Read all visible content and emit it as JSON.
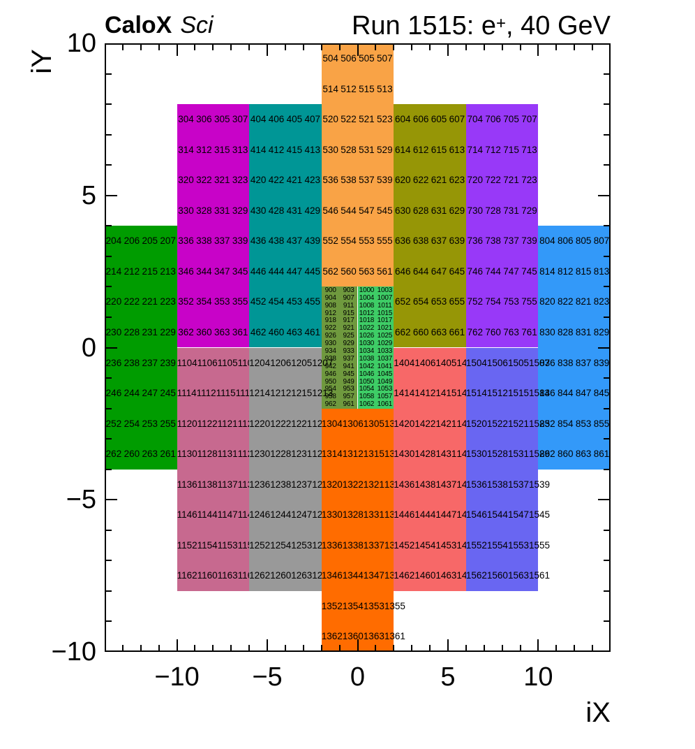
{
  "header": {
    "left_bold": "CaloX",
    "left_italic": "Sci",
    "right_prefix": "Run 1515: e",
    "right_sup": "+",
    "right_suffix": ", 40 GeV"
  },
  "axes": {
    "x": {
      "title": "iX",
      "range": [
        -14,
        14
      ],
      "minor_step": 1,
      "major_step": 5,
      "labels": [
        {
          "v": -10,
          "t": "−10"
        },
        {
          "v": -5,
          "t": "−5"
        },
        {
          "v": 0,
          "t": "0"
        },
        {
          "v": 5,
          "t": "5"
        },
        {
          "v": 10,
          "t": "10"
        }
      ]
    },
    "y": {
      "title": "iY",
      "range": [
        -10,
        10
      ],
      "minor_step": 1,
      "major_step": 5,
      "labels": [
        {
          "v": 10,
          "t": "10"
        },
        {
          "v": 5,
          "t": "5"
        },
        {
          "v": 0,
          "t": "0"
        },
        {
          "v": -5,
          "t": "−5"
        },
        {
          "v": -10,
          "t": "−10"
        }
      ]
    }
  },
  "chart_data": {
    "type": "heatmap",
    "title": "CaloX Sci — Run 1515: e+, 40 GeV",
    "xlabel": "iX",
    "ylabel": "iY",
    "xlim": [
      -14,
      14
    ],
    "ylim": [
      -10,
      10
    ],
    "grid": false,
    "legend": "none",
    "description": "Calorimeter channel-number map. Each colored block is a detector module; cell text is the channel ID at that (iX,iY) position. Rows listed top to bottom; x/y ranges in axis units.",
    "modules": [
      {
        "id": "200",
        "color": "#009C00",
        "x": [
          -14,
          -10
        ],
        "y": [
          -4,
          4
        ],
        "rows": [
          [
            "204",
            "206",
            "205",
            "207"
          ],
          [
            "214",
            "212",
            "215",
            "213"
          ],
          [
            "220",
            "222",
            "221",
            "223"
          ],
          [
            "230",
            "228",
            "231",
            "229"
          ],
          [
            "236",
            "238",
            "237",
            "239"
          ],
          [
            "246",
            "244",
            "247",
            "245"
          ],
          [
            "252",
            "254",
            "253",
            "255"
          ],
          [
            "262",
            "260",
            "263",
            "261"
          ]
        ]
      },
      {
        "id": "300",
        "color": "#C803C8",
        "x": [
          -10,
          -6
        ],
        "y": [
          0,
          8
        ],
        "rows": [
          [
            "304",
            "306",
            "305",
            "307"
          ],
          [
            "314",
            "312",
            "315",
            "313"
          ],
          [
            "320",
            "322",
            "321",
            "323"
          ],
          [
            "330",
            "328",
            "331",
            "329"
          ],
          [
            "336",
            "338",
            "337",
            "339"
          ],
          [
            "346",
            "344",
            "347",
            "345"
          ],
          [
            "352",
            "354",
            "353",
            "355"
          ],
          [
            "362",
            "360",
            "363",
            "361"
          ]
        ]
      },
      {
        "id": "400",
        "color": "#009696",
        "x": [
          -6,
          -2
        ],
        "y": [
          0,
          8
        ],
        "rows": [
          [
            "404",
            "406",
            "405",
            "407"
          ],
          [
            "414",
            "412",
            "415",
            "413"
          ],
          [
            "420",
            "422",
            "421",
            "423"
          ],
          [
            "430",
            "428",
            "431",
            "429"
          ],
          [
            "436",
            "438",
            "437",
            "439"
          ],
          [
            "446",
            "444",
            "447",
            "445"
          ],
          [
            "452",
            "454",
            "453",
            "455"
          ],
          [
            "462",
            "460",
            "463",
            "461"
          ]
        ]
      },
      {
        "id": "500",
        "color": "#F9A346",
        "x": [
          -2,
          2
        ],
        "y": [
          2,
          10
        ],
        "rows": [
          [
            "504",
            "506",
            "505",
            "507"
          ],
          [
            "514",
            "512",
            "515",
            "513"
          ],
          [
            "520",
            "522",
            "521",
            "523"
          ],
          [
            "530",
            "528",
            "531",
            "529"
          ],
          [
            "536",
            "538",
            "537",
            "539"
          ],
          [
            "546",
            "544",
            "547",
            "545"
          ],
          [
            "552",
            "554",
            "553",
            "555"
          ],
          [
            "562",
            "560",
            "563",
            "561"
          ]
        ]
      },
      {
        "id": "600",
        "color": "#969606",
        "x": [
          2,
          6
        ],
        "y": [
          0,
          8
        ],
        "rows": [
          [
            "604",
            "606",
            "605",
            "607"
          ],
          [
            "614",
            "612",
            "615",
            "613"
          ],
          [
            "620",
            "622",
            "621",
            "623"
          ],
          [
            "630",
            "628",
            "631",
            "629"
          ],
          [
            "636",
            "638",
            "637",
            "639"
          ],
          [
            "646",
            "644",
            "647",
            "645"
          ],
          [
            "652",
            "654",
            "653",
            "655"
          ],
          [
            "662",
            "660",
            "663",
            "661"
          ]
        ]
      },
      {
        "id": "700",
        "color": "#9839F8",
        "x": [
          6,
          10
        ],
        "y": [
          0,
          8
        ],
        "rows": [
          [
            "704",
            "706",
            "705",
            "707"
          ],
          [
            "714",
            "712",
            "715",
            "713"
          ],
          [
            "720",
            "722",
            "721",
            "723"
          ],
          [
            "730",
            "728",
            "731",
            "729"
          ],
          [
            "736",
            "738",
            "737",
            "739"
          ],
          [
            "746",
            "744",
            "747",
            "745"
          ],
          [
            "752",
            "754",
            "753",
            "755"
          ],
          [
            "762",
            "760",
            "763",
            "761"
          ]
        ]
      },
      {
        "id": "800",
        "color": "#3399F9",
        "x": [
          10,
          14
        ],
        "y": [
          -4,
          4
        ],
        "rows": [
          [
            "804",
            "806",
            "805",
            "807"
          ],
          [
            "814",
            "812",
            "815",
            "813"
          ],
          [
            "820",
            "822",
            "821",
            "823"
          ],
          [
            "830",
            "828",
            "831",
            "829"
          ],
          [
            "836",
            "838",
            "837",
            "839"
          ],
          [
            "846",
            "844",
            "847",
            "845"
          ],
          [
            "852",
            "854",
            "853",
            "855"
          ],
          [
            "862",
            "860",
            "863",
            "861"
          ]
        ]
      },
      {
        "id": "900",
        "color": "#6F993E",
        "x": [
          -2,
          0
        ],
        "y": [
          -2,
          2
        ],
        "small": true,
        "rows": [
          [
            "900",
            "903"
          ],
          [
            "904",
            "907"
          ],
          [
            "908",
            "911"
          ],
          [
            "912",
            "915"
          ],
          [
            "918",
            "917"
          ],
          [
            "922",
            "921"
          ],
          [
            "926",
            "925"
          ],
          [
            "930",
            "929"
          ],
          [
            "934",
            "933"
          ],
          [
            "938",
            "937"
          ],
          [
            "942",
            "941"
          ],
          [
            "946",
            "945"
          ],
          [
            "950",
            "949"
          ],
          [
            "954",
            "953"
          ],
          [
            "958",
            "957"
          ],
          [
            "962",
            "961"
          ]
        ]
      },
      {
        "id": "1000",
        "color": "#3ECD66",
        "x": [
          0,
          2
        ],
        "y": [
          -2,
          2
        ],
        "small": true,
        "rows": [
          [
            "1000",
            "1003"
          ],
          [
            "1004",
            "1007"
          ],
          [
            "1008",
            "1011"
          ],
          [
            "1012",
            "1015"
          ],
          [
            "1018",
            "1017"
          ],
          [
            "1022",
            "1021"
          ],
          [
            "1026",
            "1025"
          ],
          [
            "1030",
            "1029"
          ],
          [
            "1034",
            "1033"
          ],
          [
            "1038",
            "1037"
          ],
          [
            "1042",
            "1041"
          ],
          [
            "1046",
            "1045"
          ],
          [
            "1050",
            "1049"
          ],
          [
            "1054",
            "1053"
          ],
          [
            "1058",
            "1057"
          ],
          [
            "1062",
            "1061"
          ]
        ]
      },
      {
        "id": "1100",
        "color": "#C7698F",
        "x": [
          -10,
          -6
        ],
        "y": [
          -8,
          0
        ],
        "rows": [
          [
            "1104",
            "1106",
            "1105",
            "1107"
          ],
          [
            "1114",
            "1112",
            "1115",
            "1113"
          ],
          [
            "1120",
            "1122",
            "1121",
            "1123"
          ],
          [
            "1130",
            "1128",
            "1131",
            "1129"
          ],
          [
            "1136",
            "1138",
            "1137",
            "1139"
          ],
          [
            "1146",
            "1144",
            "1147",
            "1145"
          ],
          [
            "1152",
            "1154",
            "1153",
            "1155"
          ],
          [
            "1162",
            "1160",
            "1163",
            "1161"
          ]
        ]
      },
      {
        "id": "1200",
        "color": "#999999",
        "x": [
          -6,
          -2
        ],
        "y": [
          -8,
          0
        ],
        "rows": [
          [
            "1204",
            "1206",
            "1205",
            "1207"
          ],
          [
            "1214",
            "1212",
            "1215",
            "1213"
          ],
          [
            "1220",
            "1222",
            "1221",
            "1223"
          ],
          [
            "1230",
            "1228",
            "1231",
            "1229"
          ],
          [
            "1236",
            "1238",
            "1237",
            "1239"
          ],
          [
            "1246",
            "1244",
            "1247",
            "1245"
          ],
          [
            "1252",
            "1254",
            "1253",
            "1255"
          ],
          [
            "1262",
            "1260",
            "1263",
            "1261"
          ]
        ]
      },
      {
        "id": "1300",
        "color": "#FF6C00",
        "x": [
          -2,
          2
        ],
        "y": [
          -10,
          -2
        ],
        "rows": [
          [
            "1304",
            "1306",
            "1305",
            "1307"
          ],
          [
            "1314",
            "1312",
            "1315",
            "1313"
          ],
          [
            "1320",
            "1322",
            "1321",
            "1323"
          ],
          [
            "1330",
            "1328",
            "1331",
            "1329"
          ],
          [
            "1336",
            "1338",
            "1337",
            "1339"
          ],
          [
            "1346",
            "1344",
            "1347",
            "1345"
          ],
          [
            "1352",
            "1354",
            "1353",
            "1355"
          ],
          [
            "1362",
            "1360",
            "1363",
            "1361"
          ]
        ]
      },
      {
        "id": "1400",
        "color": "#F76868",
        "x": [
          2,
          6
        ],
        "y": [
          -8,
          0
        ],
        "rows": [
          [
            "1404",
            "1406",
            "1405",
            "1407"
          ],
          [
            "1414",
            "1412",
            "1415",
            "1413"
          ],
          [
            "1420",
            "1422",
            "1421",
            "1423"
          ],
          [
            "1430",
            "1428",
            "1431",
            "1429"
          ],
          [
            "1436",
            "1438",
            "1437",
            "1439"
          ],
          [
            "1446",
            "1444",
            "1447",
            "1445"
          ],
          [
            "1452",
            "1454",
            "1453",
            "1455"
          ],
          [
            "1462",
            "1460",
            "1463",
            "1461"
          ]
        ]
      },
      {
        "id": "1500",
        "color": "#6966F2",
        "x": [
          6,
          10
        ],
        "y": [
          -8,
          0
        ],
        "rows": [
          [
            "1504",
            "1506",
            "1505",
            "1507"
          ],
          [
            "1514",
            "1512",
            "1515",
            "1513"
          ],
          [
            "1520",
            "1522",
            "1521",
            "1523"
          ],
          [
            "1530",
            "1528",
            "1531",
            "1529"
          ],
          [
            "1536",
            "1538",
            "1537",
            "1539"
          ],
          [
            "1546",
            "1544",
            "1547",
            "1545"
          ],
          [
            "1552",
            "1554",
            "1553",
            "1555"
          ],
          [
            "1562",
            "1560",
            "1563",
            "1561"
          ]
        ]
      }
    ]
  },
  "style_colors": {
    "frame": "#000000",
    "text": "#000000",
    "background": "#ffffff"
  }
}
